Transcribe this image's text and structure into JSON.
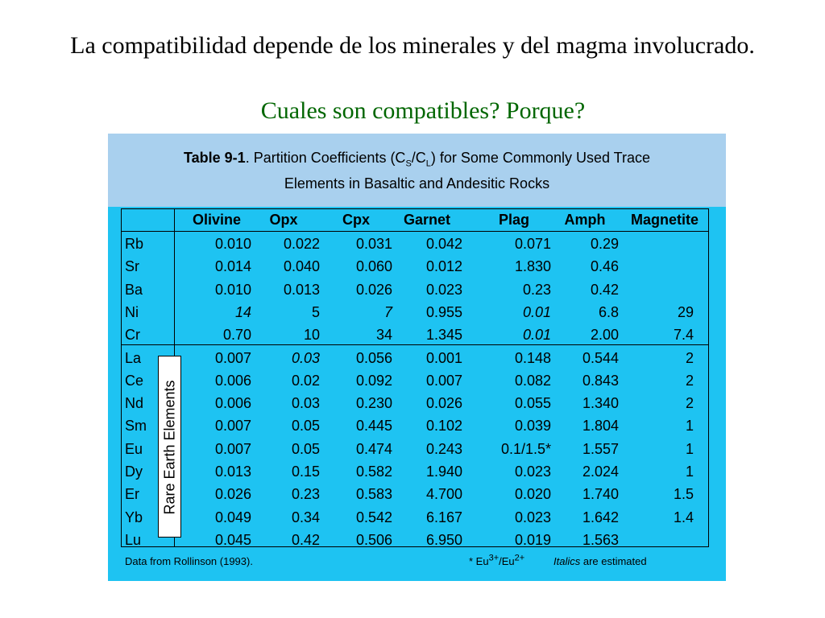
{
  "slide": {
    "title": "La compatibilidad depende de los minerales y del magma involucrado.",
    "subtitle": "Cuales son compatibles? Porque?"
  },
  "table": {
    "caption_bold": "Table 9-1",
    "caption_pre": ".  Partition Coefficients (C",
    "caption_sub1": "S",
    "caption_mid": "/C",
    "caption_sub2": "L",
    "caption_post": ") for Some Commonly Used Trace",
    "caption_line2": "Elements in Basaltic and Andesitic Rocks",
    "headers": [
      "Olivine",
      "Opx",
      "Cpx",
      "Garnet",
      "Plag",
      "Amph",
      "Magnetite"
    ],
    "group_label": "Rare Earth Elements",
    "rows": [
      {
        "el": "Rb",
        "v": [
          "0.010",
          "0.022",
          "0.031",
          "0.042",
          "0.071",
          "0.29",
          ""
        ]
      },
      {
        "el": "Sr",
        "v": [
          "0.014",
          "0.040",
          "0.060",
          "0.012",
          "1.830",
          "0.46",
          ""
        ]
      },
      {
        "el": "Ba",
        "v": [
          "0.010",
          "0.013",
          "0.026",
          "0.023",
          "0.23",
          "0.42",
          ""
        ]
      },
      {
        "el": "Ni",
        "v": [
          "14",
          "5",
          "7",
          "0.955",
          "0.01",
          "6.8",
          "29"
        ],
        "italic": [
          0,
          2,
          4
        ]
      },
      {
        "el": "Cr",
        "v": [
          "0.70",
          "10",
          "34",
          "1.345",
          "0.01",
          "2.00",
          "7.4"
        ],
        "italic": [
          4
        ]
      },
      {
        "el": "La",
        "v": [
          "0.007",
          "0.03",
          "0.056",
          "0.001",
          "0.148",
          "0.544",
          "2"
        ],
        "italic": [
          1
        ]
      },
      {
        "el": "Ce",
        "v": [
          "0.006",
          "0.02",
          "0.092",
          "0.007",
          "0.082",
          "0.843",
          "2"
        ]
      },
      {
        "el": "Nd",
        "v": [
          "0.006",
          "0.03",
          "0.230",
          "0.026",
          "0.055",
          "1.340",
          "2"
        ]
      },
      {
        "el": "Sm",
        "v": [
          "0.007",
          "0.05",
          "0.445",
          "0.102",
          "0.039",
          "1.804",
          "1"
        ]
      },
      {
        "el": "Eu",
        "v": [
          "0.007",
          "0.05",
          "0.474",
          "0.243",
          "0.1/1.5*",
          "1.557",
          "1"
        ]
      },
      {
        "el": "Dy",
        "v": [
          "0.013",
          "0.15",
          "0.582",
          "1.940",
          "0.023",
          "2.024",
          "1"
        ]
      },
      {
        "el": "Er",
        "v": [
          "0.026",
          "0.23",
          "0.583",
          "4.700",
          "0.020",
          "1.740",
          "1.5"
        ]
      },
      {
        "el": "Yb",
        "v": [
          "0.049",
          "0.34",
          "0.542",
          "6.167",
          "0.023",
          "1.642",
          "1.4"
        ]
      },
      {
        "el": "Lu",
        "v": [
          "0.045",
          "0.42",
          "0.506",
          "6.950",
          "0.019",
          "1.563",
          ""
        ]
      }
    ]
  },
  "footer": {
    "source": "Data from Rollinson (1993).",
    "eu_note_pre": "* Eu",
    "eu_sup1": "3+",
    "eu_mid": "/Eu",
    "eu_sup2": "2+",
    "italic_word": "Italics",
    "italic_rest": " are estimated"
  },
  "colors": {
    "panel_bg": "#1ec3f2",
    "caption_bg": "#a9d0ee",
    "subtitle": "#006600"
  }
}
